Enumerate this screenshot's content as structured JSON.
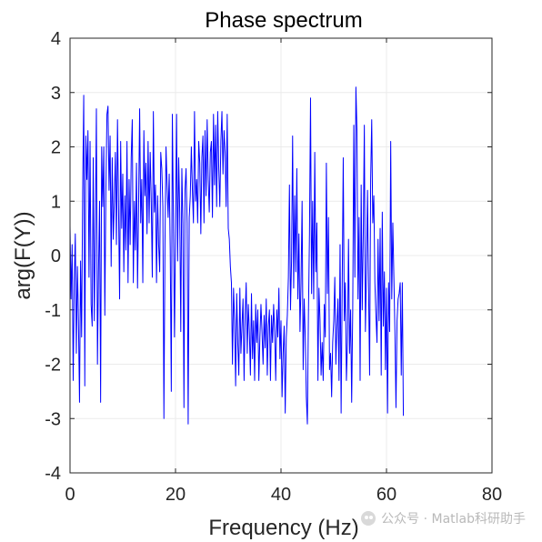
{
  "chart_data": {
    "type": "line",
    "title": "Phase spectrum",
    "xlabel": "Frequency (Hz)",
    "ylabel": "arg(F(Y))",
    "xlim": [
      0,
      80
    ],
    "ylim": [
      -4,
      4
    ],
    "xticks": [
      "0",
      "20",
      "40",
      "60",
      "80"
    ],
    "yticks": [
      "4",
      "3",
      "2",
      "1",
      "0",
      "-1",
      "-2",
      "-3",
      "-4"
    ],
    "grid": true,
    "line_color": "#0000ff",
    "x_step": 0.2,
    "series": [
      {
        "values": [
          0.55,
          -0.8,
          0.2,
          -2.3,
          -0.5,
          0.4,
          -1.8,
          -0.2,
          -1.2,
          -2.7,
          -0.1,
          -1.5,
          1.2,
          2.95,
          -2.4,
          2.2,
          1.4,
          2.3,
          -0.4,
          2.1,
          -0.9,
          -1.3,
          1.8,
          -1.2,
          0.5,
          2.7,
          -2.0,
          -0.3,
          1.0,
          -2.7,
          2.0,
          0.9,
          2.0,
          -1.1,
          1.2,
          2.6,
          2.75,
          1.2,
          2.2,
          -0.2,
          1.8,
          0.3,
          1.0,
          1.9,
          0.2,
          2.5,
          0.9,
          -0.8,
          2.1,
          0.5,
          1.5,
          -0.3,
          1.1,
          0.1,
          2.1,
          -0.5,
          1.4,
          0.2,
          1.8,
          2.5,
          -0.5,
          1.0,
          0.1,
          1.7,
          -0.6,
          0.9,
          2.7,
          0.6,
          1.4,
          -0.5,
          2.3,
          1.1,
          1.7,
          0.4,
          2.1,
          0.6,
          1.9,
          1.0,
          -0.4,
          2.65,
          0.8,
          1.3,
          -0.5,
          1.1,
          0.2,
          -0.3,
          1.9,
          1.6,
          0.9,
          -3.0,
          0.2,
          2.0,
          1.3,
          0.7,
          1.5,
          0.1,
          -2.5,
          2.6,
          0.7,
          -1.5,
          0.5,
          2.6,
          -0.1,
          1.8,
          0.8,
          -1.4,
          1.6,
          0.6,
          -2.8,
          1.2,
          1.6,
          0.6,
          -3.1,
          0.7,
          1.1,
          2.0,
          1.2,
          0.6,
          2.65,
          1.0,
          1.4,
          0.6,
          2.1,
          1.7,
          0.4,
          1.8,
          2.2,
          0.6,
          2.3,
          1.1,
          2.5,
          1.4,
          0.8,
          1.9,
          2.1,
          0.7,
          2.6,
          1.3,
          2.4,
          0.9,
          2.65,
          1.6,
          0.9,
          2.1,
          2.65,
          1.5,
          2.3,
          1.9,
          0.9,
          2.6,
          0.5,
          0.3,
          -0.2,
          -0.5,
          -2.0,
          -0.6,
          -1.2,
          -2.4,
          -0.7,
          -1.6,
          -2.2,
          -0.6,
          -1.8,
          -1.3,
          -0.8,
          -2.3,
          -1.1,
          -0.5,
          -1.8,
          -0.9,
          -1.4,
          -2.2,
          -0.7,
          -1.9,
          -1.2,
          -2.3,
          -0.9,
          -1.6,
          -1.0,
          -2.3,
          -1.5,
          -0.9,
          -1.4,
          -2.0,
          -1.1,
          -1.7,
          -0.8,
          -2.2,
          -1.3,
          -1.0,
          -2.3,
          -1.1,
          -1.6,
          -0.9,
          -1.4,
          -2.3,
          -1.0,
          -1.5,
          -0.6,
          -1.9,
          -1.2,
          -2.6,
          -1.8,
          -1.3,
          -2.9,
          -1.5,
          -1.1,
          -0.4,
          1.3,
          -1.0,
          -0.1,
          2.2,
          -0.6,
          1.1,
          -0.3,
          1.6,
          -0.8,
          0.4,
          -1.4,
          -0.5,
          1.0,
          -2.1,
          -0.8,
          -1.5,
          -2.6,
          -3.1,
          -1.1,
          0.4,
          2.9,
          -0.7,
          1.0,
          -0.8,
          1.9,
          -0.3,
          0.6,
          -2.3,
          -0.6,
          -1.2,
          -2.2,
          -1.6,
          -2.3,
          -0.9,
          -1.5,
          1.7,
          -0.7,
          0.7,
          -2.1,
          -1.8,
          -2.6,
          -1.6,
          -1.2,
          -0.4,
          -2.0,
          -1.3,
          -0.8,
          -2.3,
          0.2,
          -2.9,
          -0.6,
          1.8,
          -1.2,
          -0.5,
          -2.3,
          -1.6,
          0.3,
          -1.8,
          -1.0,
          -2.7,
          -1.0,
          2.4,
          -0.4,
          3.1,
          2.3,
          -0.8,
          0.7,
          -2.3,
          1.3,
          -1.0,
          0.4,
          2.4,
          -1.4,
          -0.3,
          1.2,
          -0.6,
          -2.2,
          1.4,
          2.5,
          0.6,
          1.1,
          -0.5,
          -1.1,
          -1.6,
          0.3,
          -1.2,
          0.5,
          -2.2,
          0.8,
          -1.3,
          -0.3,
          -2.1,
          -0.6,
          -2.9,
          -0.5,
          -1.4,
          2.1,
          -0.8,
          0.6,
          -0.4,
          -1.4,
          -2.8,
          -1.2,
          -0.8,
          -0.7,
          -0.5,
          -2.2,
          -0.5,
          -2.95
        ]
      }
    ]
  },
  "watermark": {
    "icon": "wechat-icon",
    "text": "公众号 · Matlab科研助手"
  }
}
